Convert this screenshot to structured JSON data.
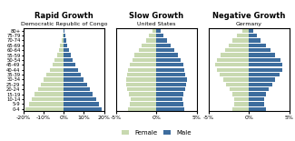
{
  "chart_data": [
    {
      "type": "bar",
      "orientation": "horizontal",
      "title": "Rapid Growth",
      "subtitle": "Democratic Republic of Congo",
      "categories": [
        "0-4",
        "5-9",
        "10-14",
        "15-19",
        "20-24",
        "25-29",
        "30-34",
        "35-39",
        "40-44",
        "45-49",
        "50-54",
        "55-59",
        "60-64",
        "65-69",
        "70-74",
        "75-79",
        "80+"
      ],
      "series": [
        {
          "name": "Female",
          "color": "#c8d9b0",
          "values": [
            -19.0,
            -17.5,
            -16.0,
            -14.5,
            -13.0,
            -11.5,
            -10.0,
            -8.5,
            -7.0,
            -5.5,
            -4.5,
            -3.5,
            -2.5,
            -1.8,
            -1.2,
            -0.7,
            -0.3
          ]
        },
        {
          "name": "Male",
          "color": "#3d6d9e",
          "values": [
            19.0,
            17.5,
            16.0,
            14.5,
            13.0,
            11.5,
            10.0,
            8.5,
            7.0,
            5.5,
            4.5,
            3.5,
            2.5,
            1.8,
            1.2,
            0.7,
            0.3
          ]
        }
      ],
      "xlim": [
        -20,
        20
      ],
      "xticks": [
        {
          "value": -20,
          "label": "-20%"
        },
        {
          "value": -10,
          "label": "-10%"
        },
        {
          "value": 0,
          "label": "0%"
        },
        {
          "value": 10,
          "label": "10%"
        },
        {
          "value": 20,
          "label": "20%"
        }
      ],
      "legend": "lower center"
    },
    {
      "type": "bar",
      "orientation": "horizontal",
      "title": "Slow Growth",
      "subtitle": "United States",
      "categories": [
        "0-4",
        "5-9",
        "10-14",
        "15-19",
        "20-24",
        "25-29",
        "30-34",
        "35-39",
        "40-44",
        "45-49",
        "50-54",
        "55-59",
        "60-64",
        "65-69",
        "70-74",
        "75-79",
        "80+"
      ],
      "series": [
        {
          "name": "Female",
          "color": "#c8d9b0",
          "values": [
            -3.5,
            -3.3,
            -3.2,
            -3.4,
            -3.6,
            -3.7,
            -3.8,
            -3.6,
            -3.5,
            -3.3,
            -3.0,
            -2.7,
            -2.2,
            -1.8,
            -1.3,
            -0.9,
            -0.5
          ]
        },
        {
          "name": "Male",
          "color": "#3d6d9e",
          "values": [
            3.5,
            3.3,
            3.2,
            3.4,
            3.6,
            3.7,
            3.8,
            3.6,
            3.5,
            3.3,
            3.0,
            2.7,
            2.2,
            1.8,
            1.3,
            0.9,
            0.5
          ]
        }
      ],
      "xlim": [
        -5,
        5
      ],
      "xticks": [
        {
          "value": -5,
          "label": "-5%"
        },
        {
          "value": 0,
          "label": "0%"
        },
        {
          "value": 5,
          "label": "5%"
        }
      ],
      "tick_labels": "x"
    },
    {
      "type": "bar",
      "orientation": "horizontal",
      "title": "Negative Growth",
      "subtitle": "Germany",
      "categories": [
        "0-4",
        "5-9",
        "10-14",
        "15-19",
        "20-24",
        "25-29",
        "30-34",
        "35-39",
        "40-44",
        "45-49",
        "50-54",
        "55-59",
        "60-64",
        "65-69",
        "70-74",
        "75-79",
        "80+"
      ],
      "series": [
        {
          "name": "Female",
          "color": "#c8d9b0",
          "values": [
            -2.0,
            -1.8,
            -1.8,
            -2.0,
            -2.4,
            -2.8,
            -3.2,
            -3.6,
            -4.0,
            -4.2,
            -4.0,
            -3.5,
            -3.0,
            -2.5,
            -2.0,
            -1.5,
            -0.8
          ]
        },
        {
          "name": "Male",
          "color": "#3d6d9e",
          "values": [
            2.1,
            1.9,
            1.9,
            2.1,
            2.5,
            2.9,
            3.3,
            3.8,
            4.1,
            4.2,
            3.9,
            3.3,
            2.7,
            2.1,
            1.5,
            1.0,
            0.5
          ]
        }
      ],
      "xlim": [
        -5,
        5
      ],
      "xticks": [
        {
          "value": -5,
          "label": "-5%"
        },
        {
          "value": 0,
          "label": "0%"
        },
        {
          "value": 5,
          "label": "5%"
        }
      ],
      "tick_labels": "x"
    }
  ]
}
